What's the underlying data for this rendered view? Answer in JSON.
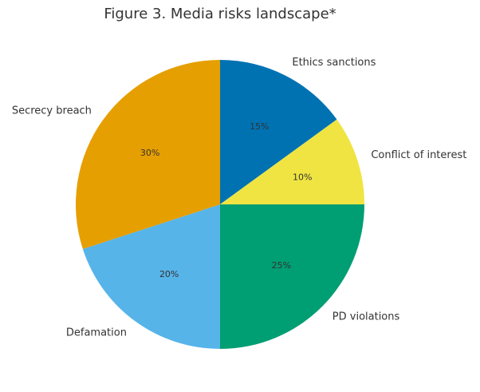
{
  "chart_data": {
    "type": "pie",
    "title": "Figure 3. Media risks landscape*",
    "categories": [
      "Ethics sanctions",
      "Conflict of interest",
      "PD violations",
      "Defamation",
      "Secrecy breach"
    ],
    "values": [
      15,
      10,
      25,
      20,
      30
    ],
    "value_labels": [
      "15%",
      "10%",
      "25%",
      "20%",
      "30%"
    ],
    "colors": [
      "#0072b2",
      "#f0e442",
      "#009e73",
      "#56b4e9",
      "#e69f00"
    ]
  }
}
